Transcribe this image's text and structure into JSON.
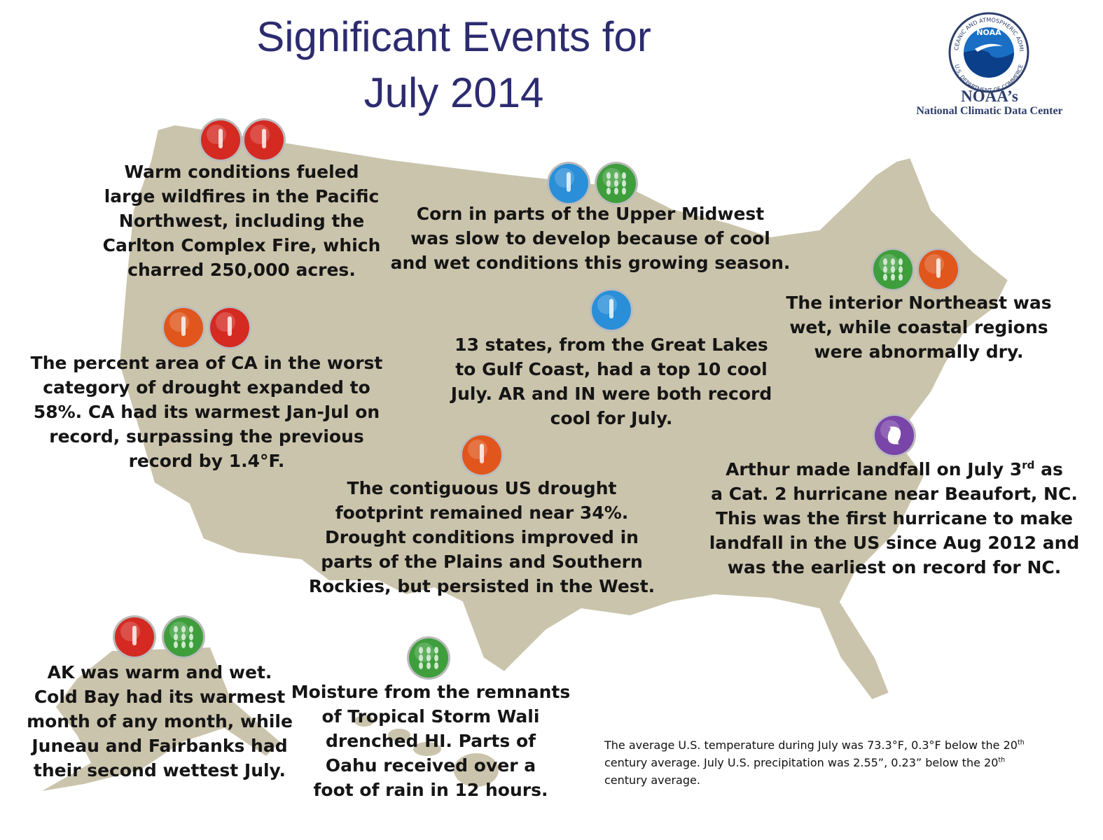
{
  "title": [
    "Significant Events for",
    "July 2014"
  ],
  "logo": {
    "ring_top": "NATIONAL OCEANIC AND ATMOSPHERIC ADMINISTRATION",
    "ring_bottom": "U.S. DEPARTMENT OF COMMERCE",
    "badge": "NOAA",
    "name": "NOAA’s",
    "center": "National Climatic Data Center"
  },
  "events": [
    {
      "lines": [
        [
          "Warm conditions fueled"
        ],
        [
          "large wildfires in the Pacific"
        ],
        [
          "Northwest, including the"
        ],
        [
          "Carlton Complex Fire, which"
        ],
        [
          "charred 250,000 acres."
        ]
      ]
    },
    {
      "lines": [
        [
          "Corn in parts of the Upper Midwest"
        ],
        [
          "was slow to develop because of cool"
        ],
        [
          "and wet conditions this growing season."
        ]
      ]
    },
    {
      "lines": [
        [
          "The interior Northeast was"
        ],
        [
          "wet, while coastal regions"
        ],
        [
          "were abnormally dry."
        ]
      ]
    },
    {
      "lines": [
        [
          "The percent area of CA in the worst"
        ],
        [
          "category of drought expanded to"
        ],
        [
          "58%. CA had its warmest Jan-Jul on"
        ],
        [
          "record, surpassing the previous"
        ],
        [
          "record by 1.4°F."
        ]
      ]
    },
    {
      "lines": [
        [
          "13 states, from the Great Lakes"
        ],
        [
          "to Gulf Coast, had a top 10 cool"
        ],
        [
          "July. AR and IN were both record"
        ],
        [
          "cool for July."
        ]
      ]
    },
    {
      "lines": [
        [
          "Arthur made landfall on July 3",
          "rd",
          "as"
        ],
        [
          "a Cat. 2 hurricane near Beaufort, NC."
        ],
        [
          "This was the first hurricane to make"
        ],
        [
          "landfall in the US since Aug 2012 and"
        ],
        [
          "was the earliest on record for NC."
        ]
      ]
    },
    {
      "lines": [
        [
          "The contiguous US drought"
        ],
        [
          "footprint remained near 34%."
        ],
        [
          "Drought conditions improved in"
        ],
        [
          "parts of the Plains and Southern"
        ],
        [
          "Rockies, but persisted in the West."
        ]
      ]
    },
    {
      "lines": [
        [
          "AK was warm and wet."
        ],
        [
          "Cold Bay had its warmest"
        ],
        [
          "month of any month, while"
        ],
        [
          "Juneau and Fairbanks had"
        ],
        [
          "their second wettest July."
        ]
      ]
    },
    {
      "lines": [
        [
          "Moisture from the remnants"
        ],
        [
          "of Tropical Storm Wali"
        ],
        [
          "drenched HI. Parts of"
        ],
        [
          "Oahu received over a"
        ],
        [
          "foot of rain in 12 hours."
        ]
      ]
    }
  ],
  "footnote": [
    [
      "The average U.S. temperature during July was 73.3°F, 0.3°F below the 20",
      "th"
    ],
    [
      "century average. July U.S. precipitation was 2.55”, 0.23” below the 20",
      "th"
    ],
    [
      "century average."
    ]
  ]
}
